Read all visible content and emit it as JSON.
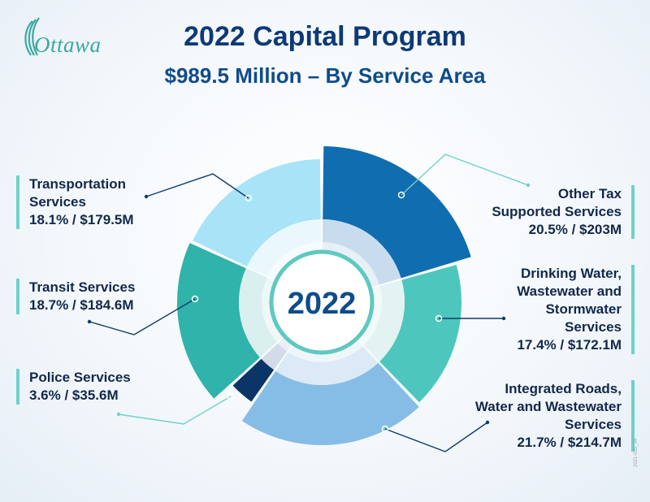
{
  "header": {
    "logo_text": "Ottawa",
    "title": "2022 Capital Program",
    "subtitle": "$989.5 Million – By Service Area"
  },
  "chart_data": {
    "type": "pie",
    "center_label": "2022",
    "slices": [
      {
        "name": "Other Tax Supported Services",
        "name_lines": [
          "Other Tax",
          "Supported Services"
        ],
        "value_label": "20.5% / $203M",
        "percent": 20.5,
        "value": 203.0,
        "color": "#0f6db0"
      },
      {
        "name": "Drinking Water, Wastewater and Stormwater Services",
        "name_lines": [
          "Drinking Water,",
          "Wastewater and",
          "Stormwater",
          "Services"
        ],
        "value_label": "17.4% / $172.1M",
        "percent": 17.4,
        "value": 172.1,
        "color": "#4dc7bd"
      },
      {
        "name": "Integrated Roads, Water and Wastewater Services",
        "name_lines": [
          "Integrated Roads,",
          "Water and Wastewater",
          "Services"
        ],
        "value_label": "21.7% / $214.7M",
        "percent": 21.7,
        "value": 214.7,
        "color": "#86bde6"
      },
      {
        "name": "Police Services",
        "name_lines": [
          "Police Services"
        ],
        "value_label": "3.6% / $35.6M",
        "percent": 3.6,
        "value": 35.6,
        "color": "#0b3567"
      },
      {
        "name": "Transit Services",
        "name_lines": [
          "Transit Services"
        ],
        "value_label": "18.7% / $184.6M",
        "percent": 18.7,
        "value": 184.6,
        "color": "#2fb3aa"
      },
      {
        "name": "Transportation Services",
        "name_lines": [
          "Transportation",
          "Services"
        ],
        "value_label": "18.1% / $179.5M",
        "percent": 18.1,
        "value": 179.5,
        "color": "#a8e3f8"
      }
    ]
  },
  "footer": {
    "code": "2021-039_04"
  }
}
